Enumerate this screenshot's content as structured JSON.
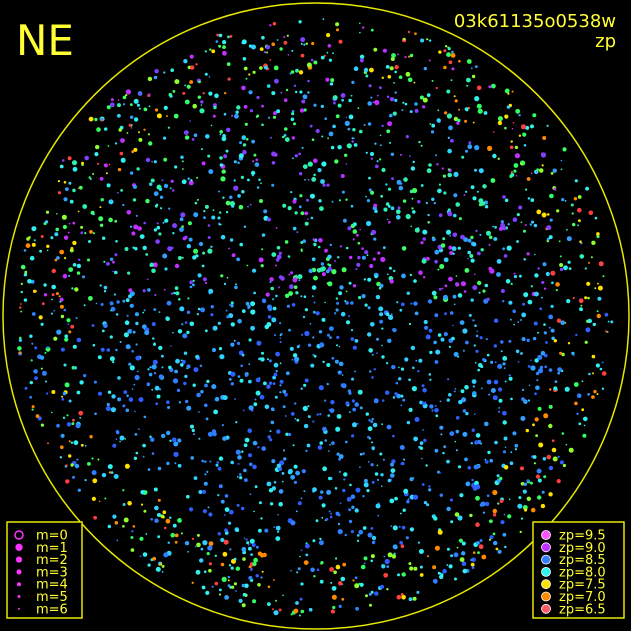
{
  "title": "NE",
  "image_id": "03k61135o0538w",
  "subtitle": "zp",
  "magnitude_legend": [
    "m=0",
    "m=1",
    "m=2",
    "m=3",
    "m=4",
    "m=5",
    "m=6"
  ],
  "zp_legend": [
    {
      "label": "zp=9.5",
      "color": "#ff55ff"
    },
    {
      "label": "zp=9.0",
      "color": "#c030ff"
    },
    {
      "label": "zp=8.5",
      "color": "#2f7fff"
    },
    {
      "label": "zp=8.0",
      "color": "#30f0f0"
    },
    {
      "label": "zp=7.5",
      "color": "#ffe000"
    },
    {
      "label": "zp=7.0",
      "color": "#ff8a00"
    },
    {
      "label": "zp=6.5",
      "color": "#ff5a6a"
    }
  ]
}
